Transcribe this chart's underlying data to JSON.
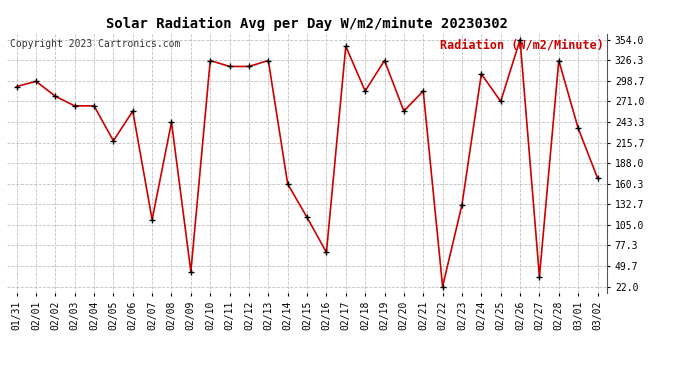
{
  "title": "Solar Radiation Avg per Day W/m2/minute 20230302",
  "copyright": "Copyright 2023 Cartronics.com",
  "legend_label": "Radiation (W/m2/Minute)",
  "dates": [
    "01/31",
    "02/01",
    "02/02",
    "02/03",
    "02/04",
    "02/05",
    "02/06",
    "02/07",
    "02/08",
    "02/09",
    "02/10",
    "02/11",
    "02/12",
    "02/13",
    "02/14",
    "02/15",
    "02/16",
    "02/17",
    "02/18",
    "02/19",
    "02/20",
    "02/21",
    "02/22",
    "02/23",
    "02/24",
    "02/25",
    "02/26",
    "02/27",
    "02/28",
    "03/01",
    "03/02"
  ],
  "values": [
    291,
    298,
    278,
    265,
    265,
    218,
    258,
    112,
    243,
    42,
    326,
    318,
    318,
    326,
    160,
    115,
    68,
    345,
    285,
    326,
    258,
    285,
    22,
    132,
    308,
    271,
    354,
    35,
    326,
    235,
    168
  ],
  "yticks": [
    22.0,
    49.7,
    77.3,
    105.0,
    132.7,
    160.3,
    188.0,
    215.7,
    243.3,
    271.0,
    298.7,
    326.3,
    354.0
  ],
  "ymin": 22.0,
  "ymax": 354.0,
  "line_color": "#cc0000",
  "marker_color": "#000000",
  "bg_color": "#ffffff",
  "grid_color": "#c0c0c0",
  "title_fontsize": 10,
  "copyright_fontsize": 7,
  "legend_fontsize": 8.5,
  "tick_fontsize": 7,
  "fig_width": 6.9,
  "fig_height": 3.75,
  "dpi": 100
}
